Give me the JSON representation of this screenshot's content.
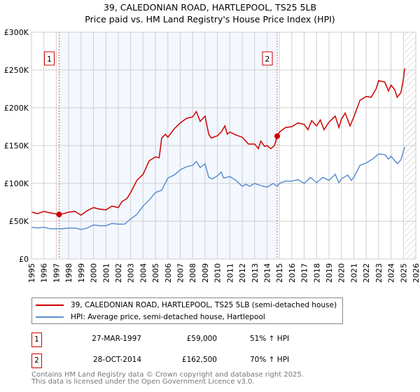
{
  "chart_data": {
    "type": "line",
    "title": "39, CALEDONIAN ROAD, HARTLEPOOL, TS25 5LB",
    "subtitle": "Price paid vs. HM Land Registry's House Price Index (HPI)",
    "xlim": [
      1995,
      2026
    ],
    "ylim": [
      0,
      300000
    ],
    "x_ticks": [
      "1995",
      "1996",
      "1997",
      "1998",
      "1999",
      "2000",
      "2001",
      "2002",
      "2003",
      "2004",
      "2005",
      "2006",
      "2007",
      "2008",
      "2009",
      "2010",
      "2011",
      "2012",
      "2013",
      "2014",
      "2015",
      "2016",
      "2017",
      "2018",
      "2019",
      "2020",
      "2021",
      "2022",
      "2023",
      "2024",
      "2025",
      "2026"
    ],
    "y_ticks": [
      {
        "value": 0,
        "label": "£0"
      },
      {
        "value": 50000,
        "label": "£50K"
      },
      {
        "value": 100000,
        "label": "£100K"
      },
      {
        "value": 150000,
        "label": "£150K"
      },
      {
        "value": 200000,
        "label": "£200K"
      },
      {
        "value": 250000,
        "label": "£250K"
      },
      {
        "value": 300000,
        "label": "£300K"
      }
    ],
    "grid": true,
    "shaded_period": [
      1997.23,
      2014.82
    ],
    "forecast_hatch_from": 2025.1,
    "series": [
      {
        "name": "39, CALEDONIAN ROAD, HARTLEPOOL, TS25 5LB (semi-detached house)",
        "color": "#cc0000",
        "points": [
          [
            1995,
            62
          ],
          [
            1995.5,
            60
          ],
          [
            1996,
            63
          ],
          [
            1996.5,
            61
          ],
          [
            1997.23,
            59
          ],
          [
            1997.6,
            60
          ],
          [
            1998,
            62
          ],
          [
            1998.5,
            63
          ],
          [
            1999,
            58
          ],
          [
            1999.5,
            64
          ],
          [
            2000,
            68
          ],
          [
            2000.5,
            66
          ],
          [
            2001,
            65
          ],
          [
            2001.5,
            70
          ],
          [
            2002,
            68
          ],
          [
            2002.3,
            76
          ],
          [
            2002.7,
            80
          ],
          [
            2003,
            88
          ],
          [
            2003.5,
            104
          ],
          [
            2004,
            112
          ],
          [
            2004.5,
            130
          ],
          [
            2005,
            135
          ],
          [
            2005.3,
            134
          ],
          [
            2005.5,
            160
          ],
          [
            2005.8,
            165
          ],
          [
            2006,
            161
          ],
          [
            2006.5,
            172
          ],
          [
            2007,
            180
          ],
          [
            2007.5,
            186
          ],
          [
            2008,
            188
          ],
          [
            2008.3,
            195
          ],
          [
            2008.6,
            182
          ],
          [
            2009,
            189
          ],
          [
            2009.3,
            165
          ],
          [
            2009.5,
            160
          ],
          [
            2010,
            163
          ],
          [
            2010.3,
            168
          ],
          [
            2010.6,
            176
          ],
          [
            2010.8,
            165
          ],
          [
            2011,
            168
          ],
          [
            2011.5,
            164
          ],
          [
            2012,
            161
          ],
          [
            2012.5,
            152
          ],
          [
            2013,
            152
          ],
          [
            2013.3,
            146
          ],
          [
            2013.5,
            156
          ],
          [
            2013.8,
            149
          ],
          [
            2014,
            150
          ],
          [
            2014.3,
            146
          ],
          [
            2014.6,
            150
          ],
          [
            2014.82,
            162.5
          ],
          [
            2015,
            168
          ],
          [
            2015.5,
            174
          ],
          [
            2016,
            175
          ],
          [
            2016.5,
            180
          ],
          [
            2017,
            178
          ],
          [
            2017.3,
            171
          ],
          [
            2017.6,
            183
          ],
          [
            2018,
            176
          ],
          [
            2018.3,
            184
          ],
          [
            2018.6,
            171
          ],
          [
            2019,
            181
          ],
          [
            2019.5,
            189
          ],
          [
            2019.8,
            174
          ],
          [
            2020,
            185
          ],
          [
            2020.3,
            193
          ],
          [
            2020.7,
            176
          ],
          [
            2021,
            188
          ],
          [
            2021.5,
            210
          ],
          [
            2022,
            215
          ],
          [
            2022.4,
            214
          ],
          [
            2022.8,
            225
          ],
          [
            2023,
            236
          ],
          [
            2023.5,
            234
          ],
          [
            2023.8,
            222
          ],
          [
            2024,
            230
          ],
          [
            2024.3,
            224
          ],
          [
            2024.5,
            214
          ],
          [
            2024.8,
            220
          ],
          [
            2025,
            238
          ],
          [
            2025.1,
            252
          ]
        ]
      },
      {
        "name": "HPI: Average price, semi-detached house, Hartlepool",
        "color": "#5b8fd0",
        "points": [
          [
            1995,
            42
          ],
          [
            1995.5,
            41
          ],
          [
            1996,
            42
          ],
          [
            1996.5,
            40
          ],
          [
            1997,
            40
          ],
          [
            1997.5,
            40
          ],
          [
            1998,
            41
          ],
          [
            1998.5,
            41
          ],
          [
            1999,
            39
          ],
          [
            1999.5,
            41
          ],
          [
            2000,
            45
          ],
          [
            2000.5,
            44
          ],
          [
            2001,
            44
          ],
          [
            2001.5,
            47
          ],
          [
            2002,
            46
          ],
          [
            2002.5,
            46
          ],
          [
            2003,
            53
          ],
          [
            2003.5,
            59
          ],
          [
            2004,
            70
          ],
          [
            2004.5,
            78
          ],
          [
            2005,
            88
          ],
          [
            2005.5,
            91
          ],
          [
            2006,
            107
          ],
          [
            2006.5,
            111
          ],
          [
            2007,
            118
          ],
          [
            2007.5,
            122
          ],
          [
            2008,
            124
          ],
          [
            2008.3,
            129
          ],
          [
            2008.6,
            121
          ],
          [
            2009,
            126
          ],
          [
            2009.3,
            108
          ],
          [
            2009.6,
            106
          ],
          [
            2010,
            110
          ],
          [
            2010.3,
            115
          ],
          [
            2010.5,
            107
          ],
          [
            2011,
            109
          ],
          [
            2011.5,
            104
          ],
          [
            2012,
            96
          ],
          [
            2012.3,
            99
          ],
          [
            2012.6,
            96
          ],
          [
            2013,
            100
          ],
          [
            2013.5,
            97
          ],
          [
            2014,
            95
          ],
          [
            2014.5,
            100
          ],
          [
            2014.82,
            96
          ],
          [
            2015,
            100
          ],
          [
            2015.5,
            103
          ],
          [
            2016,
            103
          ],
          [
            2016.5,
            105
          ],
          [
            2017,
            100
          ],
          [
            2017.5,
            108
          ],
          [
            2018,
            101
          ],
          [
            2018.5,
            108
          ],
          [
            2019,
            104
          ],
          [
            2019.5,
            112
          ],
          [
            2019.8,
            101
          ],
          [
            2020,
            106
          ],
          [
            2020.5,
            111
          ],
          [
            2020.8,
            104
          ],
          [
            2021,
            108
          ],
          [
            2021.5,
            124
          ],
          [
            2022,
            127
          ],
          [
            2022.5,
            132
          ],
          [
            2023,
            139
          ],
          [
            2023.5,
            138
          ],
          [
            2023.8,
            132
          ],
          [
            2024,
            136
          ],
          [
            2024.5,
            126
          ],
          [
            2024.8,
            131
          ],
          [
            2025.1,
            148
          ]
        ]
      }
    ],
    "sales": [
      {
        "label": "1",
        "x": 1997.23,
        "value": 59000
      },
      {
        "label": "2",
        "x": 2014.82,
        "value": 162500
      }
    ]
  },
  "legend": {
    "property": "39, CALEDONIAN ROAD, HARTLEPOOL, TS25 5LB (semi-detached house)",
    "hpi": "HPI: Average price, semi-detached house, Hartlepool"
  },
  "transactions": [
    {
      "num": "1",
      "date": "27-MAR-1997",
      "price": "£59,000",
      "hpi": "51% ↑ HPI"
    },
    {
      "num": "2",
      "date": "28-OCT-2014",
      "price": "£162,500",
      "hpi": "70% ↑ HPI"
    }
  ],
  "footer": {
    "line1": "Contains HM Land Registry data © Crown copyright and database right 2025.",
    "line2": "This data is licensed under the Open Government Licence v3.0."
  }
}
